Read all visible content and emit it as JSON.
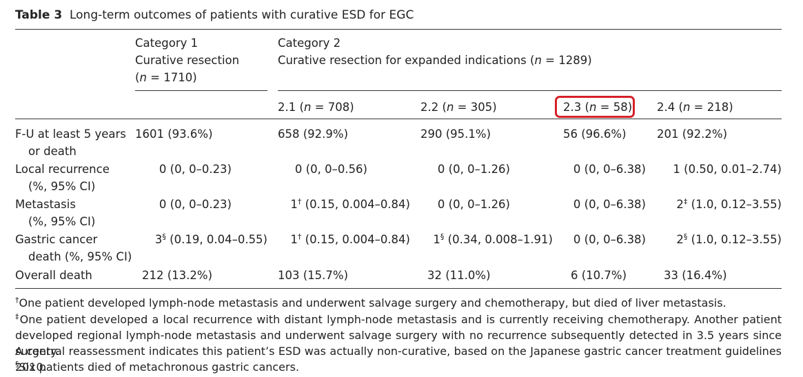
{
  "table": {
    "label": "Table 3",
    "caption": "Long-term outcomes of patients with curative ESD for EGC",
    "cat1": {
      "name": "Category 1",
      "desc": "Curative resection",
      "n_prefix": "(",
      "n_italic": "n",
      "n_suffix": " = 1710)"
    },
    "cat2": {
      "name": "Category 2",
      "desc_prefix": "Curative resection for expanded indications (",
      "n_italic": "n",
      "n_suffix": " = 1289)"
    },
    "subcols": [
      {
        "id": "2.1",
        "n": "708"
      },
      {
        "id": "2.2",
        "n": "305"
      },
      {
        "id": "2.3",
        "n": "58"
      },
      {
        "id": "2.4",
        "n": "218"
      }
    ],
    "subcol_labels": {
      "c21_pre": "2.1 (",
      "c21_post": " = 708)",
      "c22_pre": "2.2 (",
      "c22_post": " = 305)",
      "c23_pre": "2.3 (",
      "c23_post": " = 58)",
      "c24_pre": "2.4 (",
      "c24_post": " = 218)",
      "n": "n"
    },
    "rows": {
      "fu": {
        "label1": "F-U at least 5 years",
        "label2": "or death",
        "c1": "1601 (93.6%)",
        "c21": "658 (92.9%)",
        "c22": "290 (95.1%)",
        "c23": "56 (96.6%)",
        "c24": "201 (92.2%)"
      },
      "local": {
        "label1": "Local recurrence",
        "label2": "(%, 95% CI)",
        "c1": "0 (0, 0–0.23)",
        "c21": "0 (0, 0–0.56)",
        "c22": "0 (0, 0–1.26)",
        "c23": "0 (0, 0–6.38)",
        "c24": "1 (0.50, 0.01–2.74)"
      },
      "meta": {
        "label1": "Metastasis",
        "label2": "(%, 95% CI)",
        "c1": "0 (0, 0–0.23)",
        "c21_num": "1",
        "c21_mark": "†",
        "c21_rest": " (0.15, 0.004–0.84)",
        "c22": "0 (0, 0–1.26)",
        "c23": "0 (0, 0–6.38)",
        "c24_num": "2",
        "c24_mark": "‡",
        "c24_rest": " (1.0, 0.12–3.55)"
      },
      "gc": {
        "label1": "Gastric cancer",
        "label2": "death (%, 95% CI)",
        "c1_num": "3",
        "c1_mark": "§",
        "c1_rest": " (0.19, 0.04–0.55)",
        "c21_num": "1",
        "c21_mark": "†",
        "c21_rest": " (0.15, 0.004–0.84)",
        "c22_num": "1",
        "c22_mark": "§",
        "c22_rest": " (0.34, 0.008–1.91)",
        "c23": "0 (0, 0–6.38)",
        "c24_num": "2",
        "c24_mark": "§",
        "c24_rest": " (1.0, 0.12–3.55)"
      },
      "death": {
        "label1": "Overall death",
        "c1": "212 (13.2%)",
        "c21": "103 (15.7%)",
        "c22": "32 (11.0%)",
        "c23": "6 (10.7%)",
        "c24": "33 (16.4%)"
      }
    },
    "footnotes": {
      "f1_mark": "†",
      "f1": "One patient developed lymph-node metastasis and underwent salvage surgery and chemotherapy, but died of liver metastasis.",
      "f2_mark": "‡",
      "f2_line1": "One patient developed a local recurrence with distant lymph-node metastasis and is currently receiving chemotherapy. Another patient",
      "f2_line2": "developed regional lymph-node metastasis and underwent salvage surgery with no recurrence subsequently detected in 3.5 years since surgery.",
      "f2_line3": "A central reassessment indicates this patient’s ESD was actually non-curative, based on the Japanese gastric cancer treatment guidelines 2010.",
      "f3_mark": "§",
      "f3": "Six patients died of metachronous gastric cancers."
    },
    "highlight_color": "#d62027"
  }
}
